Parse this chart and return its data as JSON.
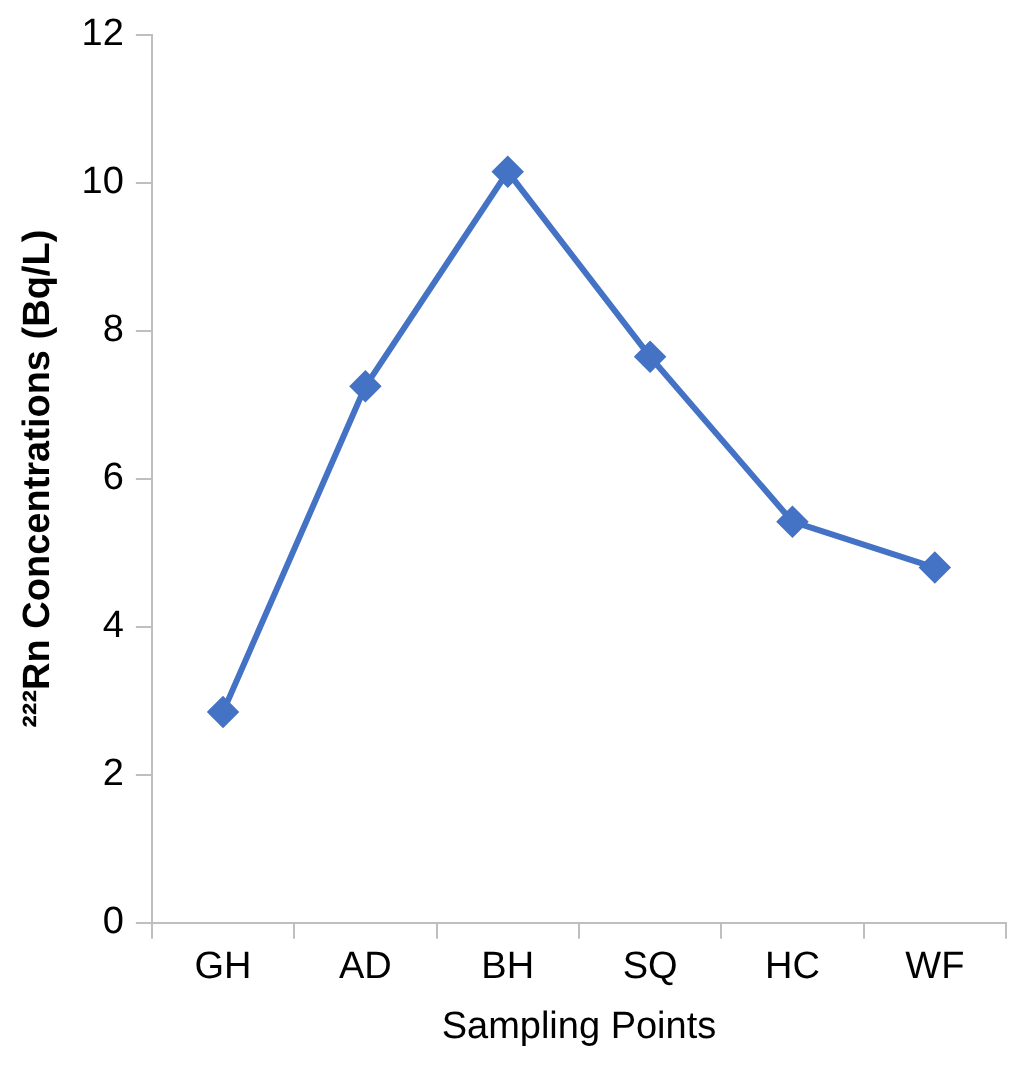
{
  "chart_data": {
    "type": "line",
    "xlabel": "Sampling Points",
    "ylabel": "²²²Rn Concentrations (Bq/L)",
    "categories": [
      "GH",
      "AD",
      "BH",
      "SQ",
      "HC",
      "WF"
    ],
    "series": [
      {
        "color": "#4472c4",
        "values": [
          2.85,
          7.25,
          10.15,
          7.65,
          5.42,
          4.8
        ]
      }
    ],
    "ylim": [
      0,
      12
    ],
    "yticks": [
      0,
      2,
      4,
      6,
      8,
      10,
      12
    ],
    "grid": false,
    "legend": false,
    "marker": "diamond",
    "line_style": "solid"
  }
}
